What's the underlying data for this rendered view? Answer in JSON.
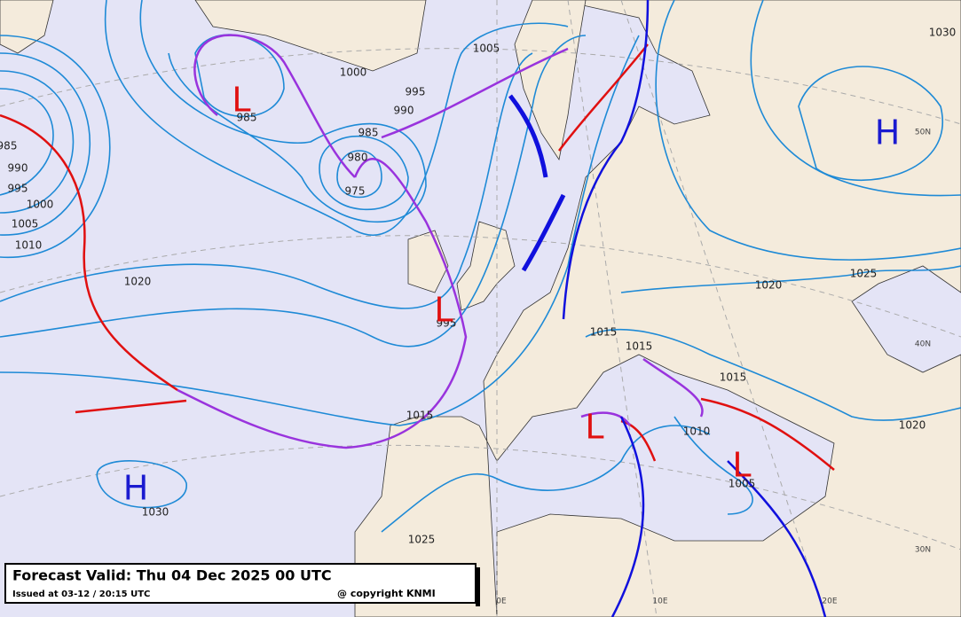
{
  "header": {
    "title": "Forecast Valid:  Thu 04 Dec 2025 00 UTC",
    "issued": "Issued at 03-12 / 20:15 UTC",
    "copyright": "@ copyright KNMI"
  },
  "pressure_centers": [
    "H",
    "H",
    "L",
    "L",
    "L",
    "L"
  ],
  "isobar_labels": [
    "985",
    "990",
    "995",
    "1000",
    "1005",
    "1010",
    "1020",
    "1030",
    "1000",
    "995",
    "990",
    "985",
    "980",
    "975",
    "985",
    "1005",
    "1030",
    "1025",
    "1020",
    "1015",
    "1015",
    "1015",
    "1020",
    "1010",
    "1005",
    "1015",
    "1025",
    "995"
  ],
  "graticule_labels": [
    "50N",
    "40N",
    "30N",
    "0E",
    "10E",
    "20E"
  ]
}
